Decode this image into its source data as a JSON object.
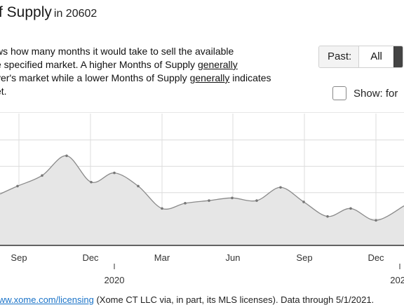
{
  "header": {
    "title": "f Supply",
    "location": "in 20602"
  },
  "description": {
    "part1": "ws how many months it would take to sell the available",
    "part2": "e specified market. A higher Months of Supply ",
    "generally1": "generally",
    "part3": "yer's market while a lower Months of Supply ",
    "generally2": "generally",
    "part4": " indicates",
    "part5": "et."
  },
  "controls": {
    "past_label": "Past:",
    "all_label": "All",
    "show_label": "Show: for"
  },
  "footer": {
    "link_text": "ww.xome.com/licensing",
    "rest_text": " (Xome CT LLC via, in part, its MLS licenses). Data through 5/1/2021."
  },
  "chart_data": {
    "type": "area",
    "month_labels": [
      "Sep",
      "Dec",
      "Mar",
      "Jun",
      "Sep",
      "Dec"
    ],
    "year_labels": [
      "2020",
      "202"
    ],
    "series": [
      {
        "points": [
          {
            "x": 0,
            "v": 3.9
          },
          {
            "x": 25,
            "v": 4.5
          },
          {
            "x": 60,
            "v": 5.3
          },
          {
            "x": 95,
            "v": 6.8
          },
          {
            "x": 130,
            "v": 4.8
          },
          {
            "x": 163,
            "v": 5.5
          },
          {
            "x": 197,
            "v": 4.5
          },
          {
            "x": 231,
            "v": 2.8
          },
          {
            "x": 264,
            "v": 3.2
          },
          {
            "x": 298,
            "v": 3.4
          },
          {
            "x": 331,
            "v": 3.6
          },
          {
            "x": 366,
            "v": 3.4
          },
          {
            "x": 400,
            "v": 4.4
          },
          {
            "x": 433,
            "v": 3.3
          },
          {
            "x": 467,
            "v": 2.2
          },
          {
            "x": 500,
            "v": 2.8
          },
          {
            "x": 536,
            "v": 1.9
          },
          {
            "x": 576,
            "v": 3.0
          }
        ]
      }
    ],
    "ylim": [
      0,
      10
    ],
    "grid": true,
    "colors": {
      "line": "#8a8a8a",
      "fill": "#e6e6e6",
      "grid": "#dcdcdc"
    }
  }
}
